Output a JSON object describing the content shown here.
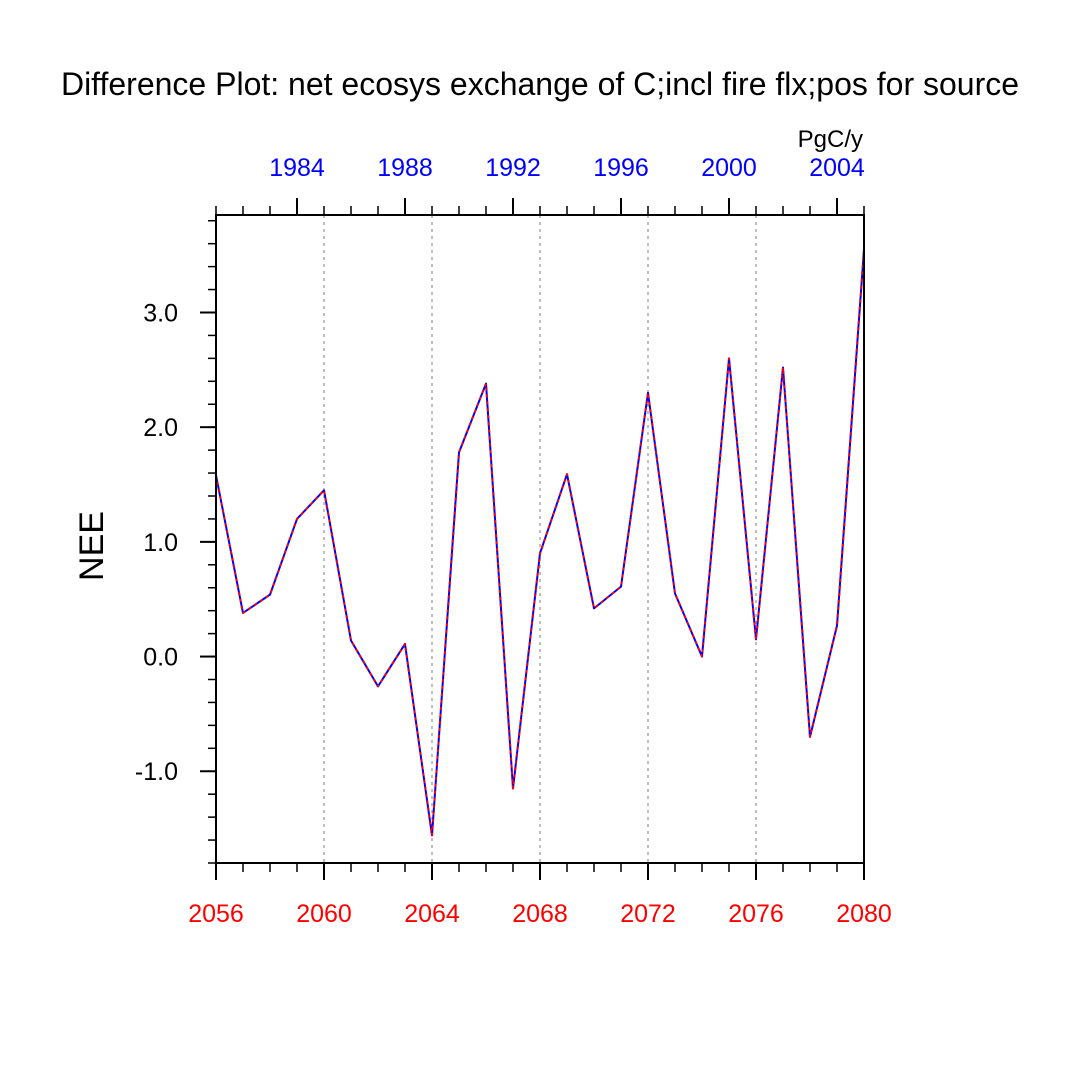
{
  "chart_data": {
    "type": "line",
    "title": "Difference Plot: net ecosys exchange of C;incl fire flx;pos for source",
    "units": "PgC/y",
    "ylabel": "NEE",
    "xlabel": "",
    "x": [
      2056,
      2057,
      2058,
      2059,
      2060,
      2061,
      2062,
      2063,
      2064,
      2065,
      2066,
      2067,
      2068,
      2069,
      2070,
      2071,
      2072,
      2073,
      2074,
      2075,
      2076,
      2077,
      2078,
      2079,
      2080
    ],
    "series": [
      {
        "color_solid": "#0000ff",
        "color_dash": "#ff0000",
        "values": [
          1.58,
          0.38,
          0.54,
          1.2,
          1.45,
          0.14,
          -0.26,
          0.11,
          -1.56,
          1.78,
          2.38,
          -1.15,
          0.9,
          1.59,
          0.42,
          0.61,
          2.3,
          0.55,
          0.0,
          2.6,
          0.15,
          2.52,
          -0.7,
          0.27,
          3.55
        ]
      }
    ],
    "xlim": [
      2056,
      2080
    ],
    "ylim": [
      -1.8,
      3.85
    ],
    "bottom_axis": {
      "color": "#ff0000",
      "tick_labels": [
        "2056",
        "2060",
        "2064",
        "2068",
        "2072",
        "2076",
        "2080"
      ],
      "tick_values": [
        2056,
        2060,
        2064,
        2068,
        2072,
        2076,
        2080
      ]
    },
    "top_axis": {
      "color": "#0000ff",
      "tick_labels": [
        "1984",
        "1988",
        "1992",
        "1996",
        "2000",
        "2004"
      ],
      "tick_values": [
        2059,
        2063,
        2067,
        2071,
        2075,
        2079
      ]
    },
    "y_axis": {
      "tick_labels": [
        "-1.0",
        "0.0",
        "1.0",
        "2.0",
        "3.0"
      ],
      "tick_values": [
        -1.0,
        0.0,
        1.0,
        2.0,
        3.0
      ]
    },
    "grid": "vertical dotted at bottom-axis major ticks"
  }
}
